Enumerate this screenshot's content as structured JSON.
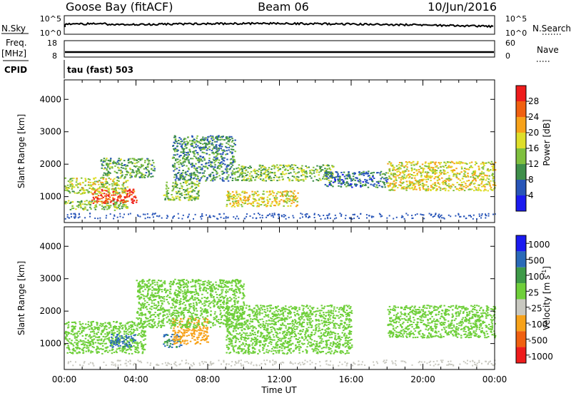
{
  "header": {
    "station": "Goose Bay (fitACF)",
    "beam": "Beam 06",
    "date": "10/Jun/2016"
  },
  "strips": {
    "nsky_label": "N.Sky",
    "nsky_ticks": [
      "10^5",
      "10^0"
    ],
    "nsearch_label": "N.Search",
    "nsearch_ticks": [
      "10^5",
      "10^0"
    ],
    "freq_label": "Freq.",
    "freq_unit": "[MHz]",
    "freq_ticks": [
      "18",
      "8"
    ],
    "nave_label": "Nave",
    "nave_ticks": [
      "60",
      "0"
    ],
    "cpid_label": "CPID",
    "cpid_value": "tau (fast) 503"
  },
  "axes": {
    "ylabel": "Slant Range [km]",
    "y_ticks": [
      "1000",
      "2000",
      "3000",
      "4000"
    ],
    "x_ticks": [
      "00:00",
      "04:00",
      "08:00",
      "12:00",
      "16:00",
      "20:00",
      "00:00"
    ],
    "xlabel": "Time UT"
  },
  "power_colorbar": {
    "label": "Power [dB]",
    "ticks": [
      "4",
      "8",
      "12",
      "16",
      "20",
      "24",
      "28"
    ],
    "colors": [
      "#1b1bf0",
      "#2855b8",
      "#3f8f4a",
      "#7fc03e",
      "#dede2a",
      "#f7a21a",
      "#f06010",
      "#ee1c1c"
    ]
  },
  "velocity_colorbar": {
    "label": "Velocity [m s",
    "label_sup": "-1",
    "label_close": "]",
    "ticks": [
      "1000",
      "500",
      "100",
      "25",
      "-25",
      "-100",
      "-500",
      "-1000"
    ],
    "colors": [
      "#1b1bf0",
      "#2a6ab8",
      "#3e9a48",
      "#6fcf3a",
      "#c8c8c0",
      "#f7a21a",
      "#f06010",
      "#ee1c1c"
    ]
  },
  "chart_data": [
    {
      "type": "heatmap",
      "title": "Goose Bay (fitACF) Beam 06 10/Jun/2016",
      "panel": "Power",
      "xlabel": "Time UT",
      "ylabel": "Slant Range [km]",
      "xlim": [
        0,
        24
      ],
      "ylim": [
        200,
        4600
      ],
      "colorbar": {
        "label": "Power [dB]",
        "range": [
          0,
          32
        ]
      },
      "regions": [
        {
          "t": [
            0,
            3.5
          ],
          "range_km": [
            600,
            900
          ],
          "value_db": 14
        },
        {
          "t": [
            1.5,
            4.0
          ],
          "range_km": [
            800,
            1250
          ],
          "value_db": 28
        },
        {
          "t": [
            0,
            3.5
          ],
          "range_km": [
            1100,
            1600
          ],
          "value_db": 16
        },
        {
          "t": [
            2.0,
            5.0
          ],
          "range_km": [
            1600,
            2200
          ],
          "value_db": 12
        },
        {
          "t": [
            5.5,
            7.5
          ],
          "range_km": [
            900,
            1500
          ],
          "value_db": 14
        },
        {
          "t": [
            6.0,
            9.5
          ],
          "range_km": [
            1500,
            2900
          ],
          "value_db": 10
        },
        {
          "t": [
            9.0,
            13.0
          ],
          "range_km": [
            700,
            1200
          ],
          "value_db": 18
        },
        {
          "t": [
            9.5,
            15.0
          ],
          "range_km": [
            1500,
            2000
          ],
          "value_db": 14
        },
        {
          "t": [
            14.5,
            18.0
          ],
          "range_km": [
            1300,
            1800
          ],
          "value_db": 8
        },
        {
          "t": [
            18.0,
            24.0
          ],
          "range_km": [
            1200,
            2100
          ],
          "value_db": 18
        }
      ]
    },
    {
      "type": "heatmap",
      "panel": "Velocity",
      "xlabel": "Time UT",
      "ylabel": "Slant Range [km]",
      "xlim": [
        0,
        24
      ],
      "ylim": [
        200,
        4600
      ],
      "colorbar": {
        "label": "Velocity [m s-1]",
        "range": [
          -1000,
          1000
        ]
      },
      "regions": [
        {
          "t": [
            0,
            4.5
          ],
          "range_km": [
            700,
            1700
          ],
          "value_ms": 0
        },
        {
          "t": [
            2.5,
            4.0
          ],
          "range_km": [
            900,
            1300
          ],
          "value_ms": 150
        },
        {
          "t": [
            5.5,
            6.5
          ],
          "range_km": [
            900,
            1300
          ],
          "value_ms": 150
        },
        {
          "t": [
            6.0,
            8.0
          ],
          "range_km": [
            1000,
            1800
          ],
          "value_ms": -300
        },
        {
          "t": [
            4.0,
            10.0
          ],
          "range_km": [
            1500,
            3000
          ],
          "value_ms": 0
        },
        {
          "t": [
            9.0,
            16.0
          ],
          "range_km": [
            700,
            2200
          ],
          "value_ms": 0
        },
        {
          "t": [
            18.0,
            24.0
          ],
          "range_km": [
            1200,
            2200
          ],
          "value_ms": 0
        }
      ]
    }
  ]
}
